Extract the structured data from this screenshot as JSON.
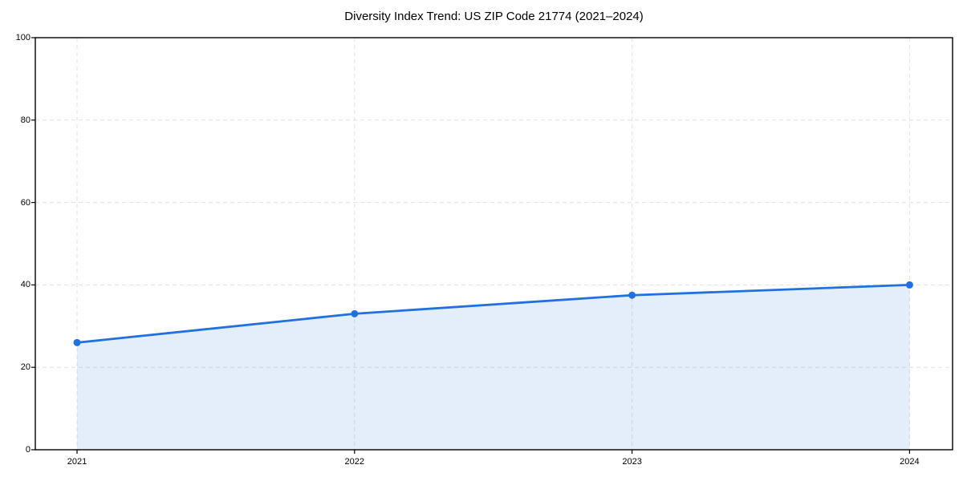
{
  "title": "Diversity Index Trend: US ZIP Code 21774 (2021–2024)",
  "chart_data": {
    "type": "area",
    "title": "Diversity Index Trend: US ZIP Code 21774 (2021–2024)",
    "x": [
      "2021",
      "2022",
      "2023",
      "2024"
    ],
    "series": [
      {
        "name": "Diversity Index",
        "values": [
          26,
          33,
          37.5,
          40
        ]
      }
    ],
    "xlabel": "",
    "ylabel": "",
    "ylim": [
      0,
      100
    ],
    "yticks": [
      0,
      20,
      40,
      60,
      80,
      100
    ],
    "xtick_labels": [
      "2021",
      "2022",
      "2023",
      "2024"
    ],
    "grid": true,
    "grid_style": "dashed",
    "legend": "none",
    "colors": {
      "line": "#2070e0",
      "marker": "#2070e0",
      "fill": "rgba(32, 112, 224, 0.12)",
      "grid": "#e1e1e1",
      "spine": "#000000",
      "text": "#000000"
    }
  }
}
